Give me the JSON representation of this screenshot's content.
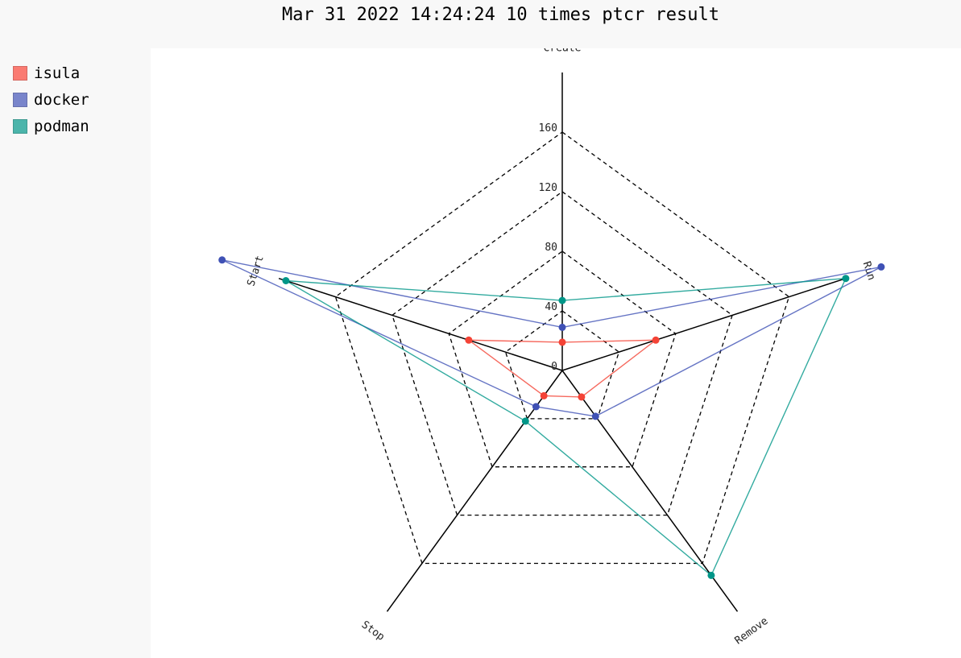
{
  "chart_data": {
    "type": "radar",
    "title": "Mar 31 2022 14:24:24 10 times ptcr result",
    "axes": [
      "Create",
      "Run",
      "Remove",
      "Stop",
      "Start"
    ],
    "ticks": [
      "0",
      "40",
      "80",
      "120",
      "160"
    ],
    "rlim": [
      0,
      200
    ],
    "grid": "dashed",
    "legend_position": "top-left",
    "series": [
      {
        "name": "isula",
        "color": "#f44336",
        "swatch": "#fa7b72",
        "values": [
          19,
          66,
          22,
          21,
          66
        ]
      },
      {
        "name": "docker",
        "color": "#3f51b5",
        "swatch": "#7985cb",
        "values": [
          29,
          225,
          38,
          30,
          240
        ]
      },
      {
        "name": "podman",
        "color": "#009688",
        "swatch": "#4cb5ab",
        "values": [
          47,
          200,
          170,
          42,
          195
        ]
      }
    ]
  }
}
